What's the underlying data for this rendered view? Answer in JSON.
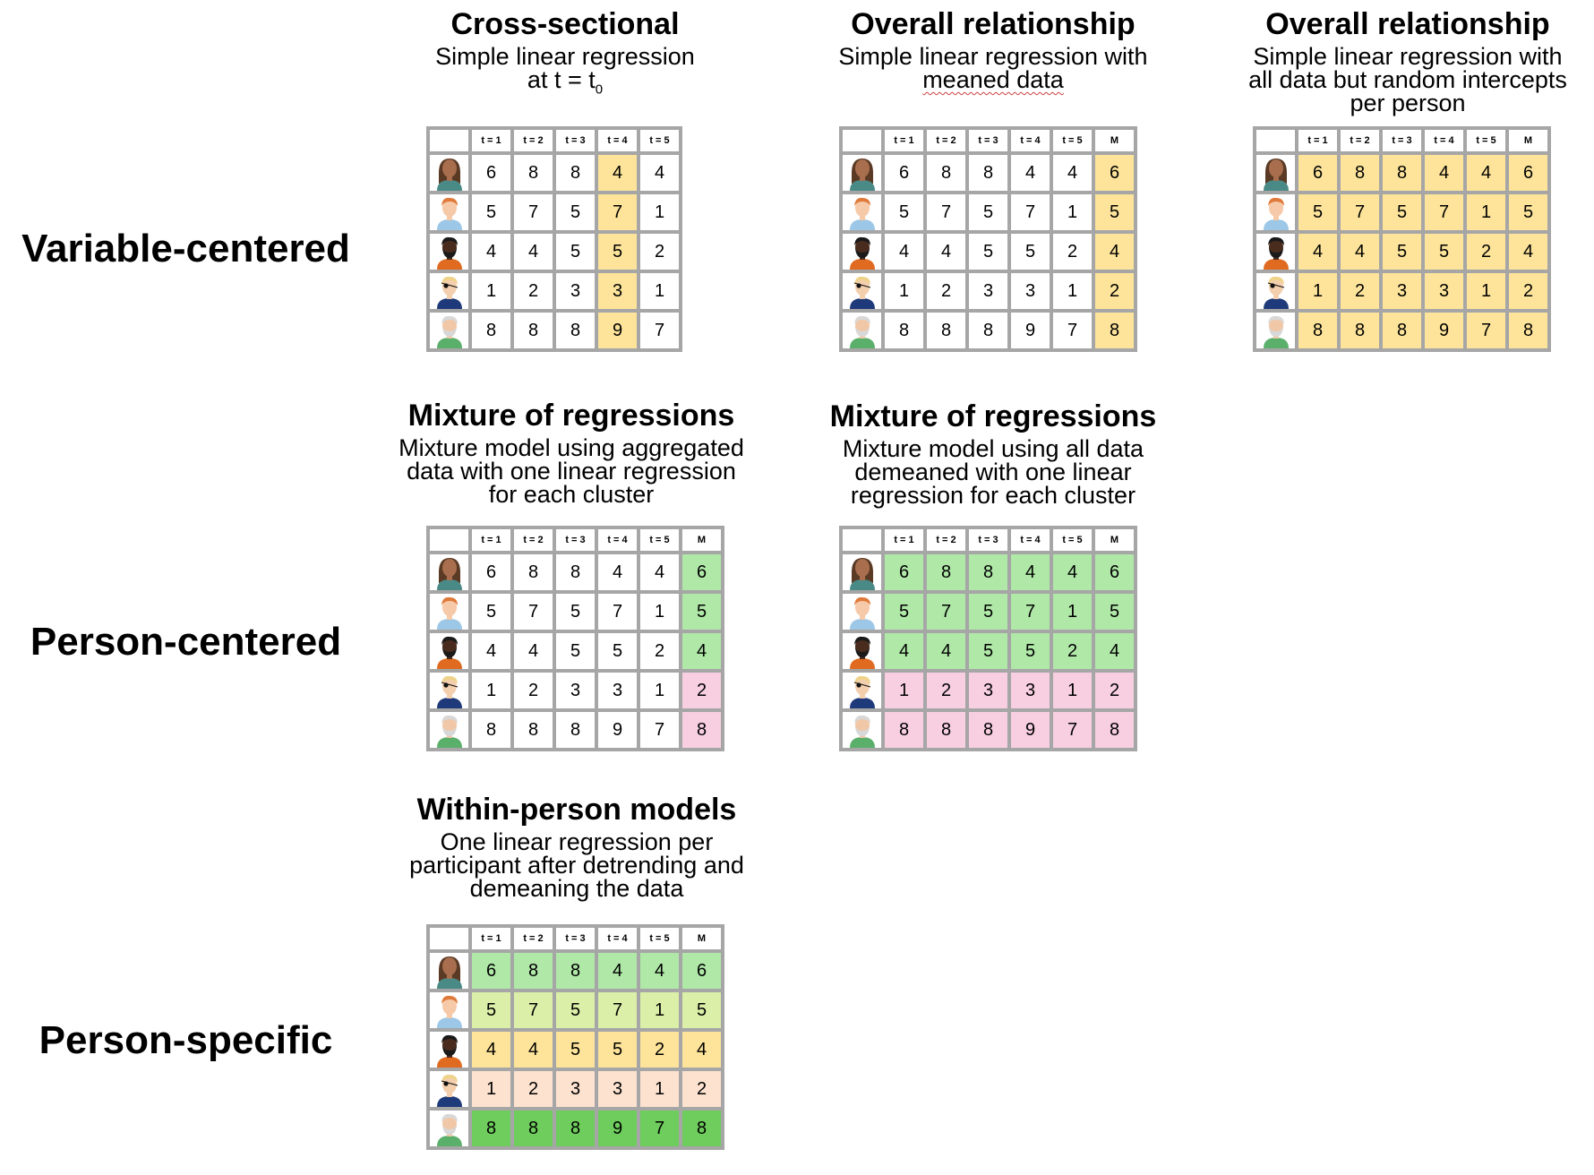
{
  "row_labels": {
    "variable": "Variable-centered",
    "person": "Person-centered",
    "specific": "Person-specific"
  },
  "headers5": [
    "t = 1",
    "t = 2",
    "t = 3",
    "t = 4",
    "t = 5"
  ],
  "headers6": [
    "t = 1",
    "t = 2",
    "t = 3",
    "t = 4",
    "t = 5",
    "M"
  ],
  "data": [
    [
      6,
      8,
      8,
      4,
      4
    ],
    [
      5,
      7,
      5,
      7,
      1
    ],
    [
      4,
      4,
      5,
      5,
      2
    ],
    [
      1,
      2,
      3,
      3,
      1
    ],
    [
      8,
      8,
      8,
      9,
      7
    ]
  ],
  "means": [
    6,
    5,
    4,
    2,
    8
  ],
  "colors": {
    "yellow": "#fde49a",
    "green": "#b0e8a8",
    "pink": "#f7cfe0",
    "lime": "#dcefa8",
    "peach": "#fde2cf",
    "bright_green": "#6ecd5c",
    "grid": "#a6a6a6"
  },
  "icons": [
    "person-1-icon",
    "person-2-icon",
    "person-3-icon",
    "person-4-icon",
    "person-5-icon"
  ],
  "panels": {
    "p1": {
      "title": "Cross-sectional",
      "sub1": "Simple linear regression",
      "sub2_pre": "at t = t",
      "sub2_sub": "0"
    },
    "p2": {
      "title": "Overall relationship",
      "sub1": "Simple linear regression with",
      "sub2": "meaned data"
    },
    "p3": {
      "title": "Overall relationship",
      "sub1": "Simple linear regression with",
      "sub2": "all data but random intercepts",
      "sub3": "per person"
    },
    "p4": {
      "title": "Mixture of regressions",
      "sub1": "Mixture model using aggregated",
      "sub2": "data with one linear regression",
      "sub3": "for each cluster"
    },
    "p5": {
      "title": "Mixture of regressions",
      "sub1": "Mixture model using all data",
      "sub2": "demeaned with one linear",
      "sub3": "regression for each cluster"
    },
    "p6": {
      "title": "Within-person models",
      "sub1": "One linear regression per",
      "sub2": "participant after detrending and",
      "sub3": "demeaning the data"
    }
  }
}
